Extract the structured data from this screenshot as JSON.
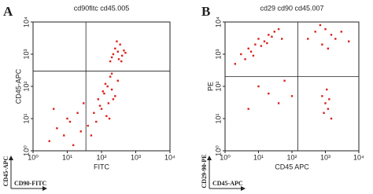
{
  "chart_data": [
    {
      "type": "scatter",
      "panel_label": "A",
      "title": "cd90fitc cd45.005",
      "x_label": "FITC",
      "y_label": "CD45-APC",
      "corner_y_label": "CD45-APC",
      "corner_x_label": "CD90-FITC",
      "log_x": true,
      "log_y": true,
      "color": "#d9221c",
      "xlim": [
        1,
        10000
      ],
      "ylim": [
        1,
        10000
      ],
      "xticks": [
        {
          "value": 1,
          "label": "10⁰"
        },
        {
          "value": 10,
          "label": "10¹"
        },
        {
          "value": 100,
          "label": "10²"
        },
        {
          "value": 1000,
          "label": "10³"
        },
        {
          "value": 10000,
          "label": "10⁴"
        }
      ],
      "yticks": [
        {
          "value": 1,
          "label": "10⁰"
        },
        {
          "value": 10,
          "label": "10¹"
        },
        {
          "value": 100,
          "label": "10²"
        },
        {
          "value": 1000,
          "label": "10³"
        },
        {
          "value": 10000,
          "label": "10⁴"
        }
      ],
      "gate_x": 35,
      "gate_y": 300,
      "x": [
        200,
        300,
        400,
        250,
        350,
        500,
        180,
        280,
        320,
        450,
        220,
        380,
        80,
        120,
        150,
        200,
        100,
        160,
        250,
        300,
        60,
        90,
        130,
        180,
        220,
        140,
        110,
        170,
        70,
        200,
        3,
        5,
        8,
        12,
        20,
        15,
        4,
        25,
        10,
        40,
        50,
        30
      ],
      "y": [
        800,
        1200,
        900,
        1500,
        2000,
        1100,
        600,
        2500,
        700,
        1300,
        1000,
        600,
        40,
        60,
        100,
        80,
        20,
        30,
        50,
        150,
        15,
        25,
        120,
        200,
        40,
        12,
        70,
        10,
        8,
        250,
        2,
        5,
        3,
        8,
        15,
        1.5,
        20,
        4,
        10,
        6,
        3,
        30
      ]
    },
    {
      "type": "scatter",
      "panel_label": "B",
      "title": "cd29 cd90 cd45.007",
      "x_label": "CD45 APC",
      "y_label": "PE",
      "corner_y_label": "CD29-90-PE",
      "corner_x_label": "CD45-APC",
      "log_x": true,
      "log_y": true,
      "color": "#d9221c",
      "xlim": [
        1,
        10000
      ],
      "ylim": [
        1,
        10000
      ],
      "xticks": [
        {
          "value": 1,
          "label": "10⁰"
        },
        {
          "value": 10,
          "label": "10¹"
        },
        {
          "value": 100,
          "label": "10²"
        },
        {
          "value": 1000,
          "label": "10³"
        },
        {
          "value": 10000,
          "label": "10⁴"
        }
      ],
      "yticks": [
        {
          "value": 1,
          "label": "10⁰"
        },
        {
          "value": 10,
          "label": "10¹"
        },
        {
          "value": 100,
          "label": "10²"
        },
        {
          "value": 1000,
          "label": "10³"
        },
        {
          "value": 10000,
          "label": "10⁴"
        }
      ],
      "gate_x": 150,
      "gate_y": 200,
      "x": [
        2,
        3,
        5,
        8,
        10,
        15,
        20,
        30,
        4,
        6,
        12,
        25,
        40,
        50,
        7,
        18,
        300,
        500,
        800,
        1000,
        1500,
        2000,
        3000,
        5000,
        700,
        1200,
        800,
        1000,
        1200,
        1500,
        900,
        1100,
        1300,
        10,
        20,
        40,
        60,
        100,
        5
      ],
      "y": [
        500,
        1000,
        1500,
        2000,
        3000,
        2500,
        4000,
        5000,
        700,
        1200,
        1800,
        3500,
        6000,
        3000,
        900,
        2200,
        3000,
        5000,
        2000,
        6000,
        4000,
        3000,
        5000,
        2500,
        8000,
        1500,
        50,
        30,
        20,
        10,
        15,
        80,
        40,
        100,
        60,
        30,
        150,
        50,
        20
      ]
    }
  ]
}
